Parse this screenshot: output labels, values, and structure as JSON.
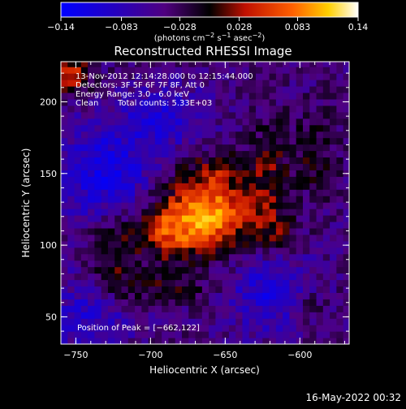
{
  "chart_data": {
    "type": "heatmap",
    "title": "Reconstructed RHESSI Image",
    "xlabel": "Heliocentric X (arcsec)",
    "ylabel": "Heliocentric Y (arcsec)",
    "xlim": [
      -760,
      -567
    ],
    "ylim": [
      31,
      228
    ],
    "x_ticks": [
      -750,
      -700,
      -650,
      -600
    ],
    "x_tick_labels": [
      "−750",
      "−700",
      "−650",
      "−600"
    ],
    "y_ticks": [
      50,
      100,
      150,
      200
    ],
    "y_tick_labels": [
      "50",
      "100",
      "150",
      "200"
    ],
    "colorbar": {
      "range": [
        -0.14,
        0.14
      ],
      "ticks": [
        -0.14,
        -0.083,
        -0.028,
        0.028,
        0.083,
        0.14
      ],
      "tick_labels": [
        "−0.14",
        "−0.083",
        "−0.028",
        "0.028",
        "0.083",
        "0.14"
      ],
      "unit_text": "(photons cm",
      "unit_sup1": "−2",
      "unit_mid": " s",
      "unit_sup2": "−1",
      "unit_mid2": " asec",
      "unit_sup3": "−2",
      "unit_end": ")"
    },
    "colormap": [
      "#0000ff",
      "#3000a8",
      "#500070",
      "#000000",
      "#c01000",
      "#ff6000",
      "#ffd000",
      "#ffffff"
    ],
    "peak": [
      -662,
      122
    ],
    "sources": [
      {
        "x": -662,
        "y": 122,
        "sx": 22,
        "sy": 20,
        "amp": 0.13
      },
      {
        "x": -690,
        "y": 110,
        "sx": 14,
        "sy": 14,
        "amp": 0.06
      },
      {
        "x": -725,
        "y": 95,
        "sx": 12,
        "sy": 22,
        "amp": 0.055
      },
      {
        "x": -700,
        "y": 70,
        "sx": 30,
        "sy": 8,
        "amp": 0.035
      },
      {
        "x": -620,
        "y": 150,
        "sx": 10,
        "sy": 30,
        "amp": 0.045
      },
      {
        "x": -590,
        "y": 165,
        "sx": 10,
        "sy": 20,
        "amp": 0.04
      },
      {
        "x": -615,
        "y": 105,
        "sx": 12,
        "sy": 12,
        "amp": 0.035
      },
      {
        "x": -755,
        "y": 220,
        "sx": 10,
        "sy": 10,
        "amp": 0.09
      },
      {
        "x": -655,
        "y": 155,
        "sx": 14,
        "sy": 8,
        "amp": 0.03
      },
      {
        "x": -595,
        "y": 60,
        "sx": 10,
        "sy": 10,
        "amp": 0.03
      }
    ],
    "negatives": [
      {
        "x": -730,
        "y": 150,
        "sx": 25,
        "sy": 25,
        "amp": -0.07
      },
      {
        "x": -620,
        "y": 70,
        "sx": 20,
        "sy": 20,
        "amp": -0.065
      },
      {
        "x": -690,
        "y": 190,
        "sx": 20,
        "sy": 15,
        "amp": -0.05
      },
      {
        "x": -740,
        "y": 55,
        "sx": 20,
        "sy": 20,
        "amp": -0.05
      }
    ],
    "annotations": {
      "time": "13-Nov-2012 12:14:28.000 to 12:15:44.000",
      "detectors": "Detectors: 3F 5F 6F 7F 8F, Att 0",
      "energy": "Energy Range: 3.0 - 6.0 keV",
      "clean_label": "Clean",
      "counts": "Total counts: 5.33E+03",
      "peak_label": "Position of Peak = [−662,122]"
    }
  },
  "footer": {
    "timestamp": "16-May-2022 00:32"
  },
  "colors": {
    "background": "#000000",
    "text": "#ffffff"
  }
}
